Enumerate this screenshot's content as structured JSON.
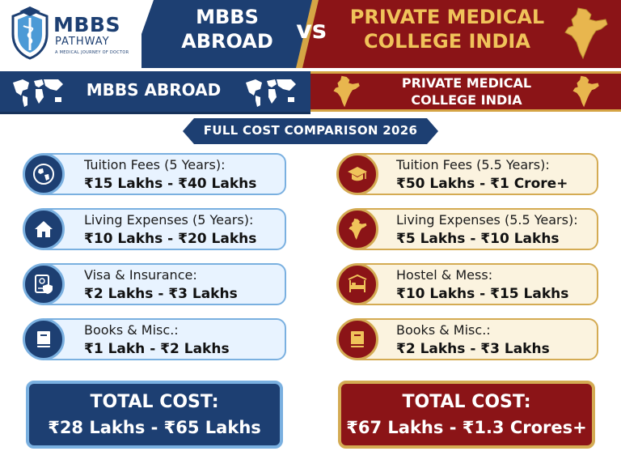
{
  "brand": {
    "name": "MBBS",
    "sub": "PATHWAY",
    "tagline": "A MEDICAL JOURNEY OF DOCTOR"
  },
  "header": {
    "left_title": "MBBS\nABROAD",
    "vs": "vs",
    "right_title": "PRIVATE MEDICAL\nCOLLEGE INDIA"
  },
  "band": {
    "left_label": "MBBS ABROAD",
    "right_label": "PRIVATE MEDICAL\nCOLLEGE INDIA"
  },
  "ribbon": {
    "label": "FULL COST COMPARISON 2026"
  },
  "abroad": [
    {
      "icon": "globe-icon",
      "label": "Tuition Fees (5 Years):",
      "value": "₹15 Lakhs - ₹40 Lakhs"
    },
    {
      "icon": "house-icon",
      "label": "Living Expenses (5 Years):",
      "value": "₹10 Lakhs - ₹20 Lakhs"
    },
    {
      "icon": "document-shield-icon",
      "label": "Visa & Insurance:",
      "value": "₹2 Lakhs - ₹3 Lakhs"
    },
    {
      "icon": "book-icon",
      "label": "Books & Misc.:",
      "value": "₹1 Lakh - ₹2 Lakhs"
    }
  ],
  "india": [
    {
      "icon": "graduation-cap-icon",
      "label": "Tuition Fees (5.5 Years):",
      "value": "₹50 Lakhs - ₹1 Crore+"
    },
    {
      "icon": "india-map-icon",
      "label": "Living Expenses (5.5 Years):",
      "value": "₹5 Lakhs - ₹10 Lakhs"
    },
    {
      "icon": "bed-icon",
      "label": "Hostel & Mess:",
      "value": "₹10 Lakhs - ₹15 Lakhs"
    },
    {
      "icon": "book-icon",
      "label": "Books & Misc.:",
      "value": "₹2 Lakhs - ₹3 Lakhs"
    }
  ],
  "totals": {
    "left_title": "TOTAL COST:",
    "left_value": "₹28 Lakhs - ₹65 Lakhs",
    "right_title": "TOTAL COST:",
    "right_value": "₹67 Lakhs - ₹1.3 Crores+"
  },
  "colors": {
    "navy": "#1d3f72",
    "maroon": "#8b1417",
    "gold": "#d4ab53",
    "light_blue": "#7ab0e0"
  }
}
